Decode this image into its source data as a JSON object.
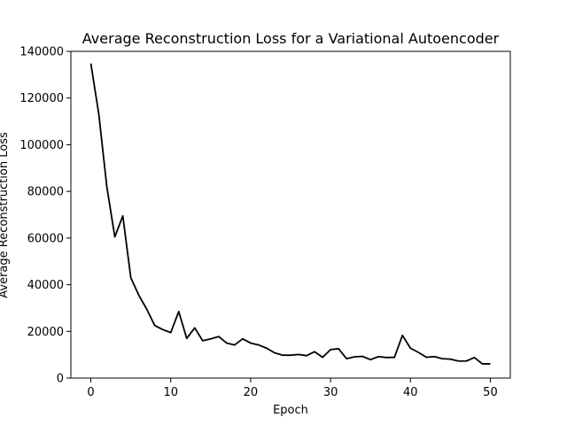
{
  "chart_data": {
    "type": "line",
    "title": "Average Reconstruction Loss for a Variational Autoencoder",
    "xlabel": "Epoch",
    "ylabel": "Average Reconstruction Loss",
    "xlim": [
      -2.5,
      52.5
    ],
    "ylim": [
      0,
      140000
    ],
    "xticks": [
      0,
      10,
      20,
      30,
      40,
      50
    ],
    "yticks": [
      0,
      20000,
      40000,
      60000,
      80000,
      100000,
      120000,
      140000
    ],
    "grid": false,
    "line_color": "#000000",
    "series": [
      {
        "x": [
          0,
          1,
          2,
          3,
          4,
          5,
          6,
          7,
          8,
          9,
          10,
          11,
          12,
          13,
          14,
          15,
          16,
          17,
          18,
          19,
          20,
          21,
          22,
          23,
          24,
          25,
          26,
          27,
          28,
          29,
          30,
          31,
          32,
          33,
          34,
          35,
          36,
          37,
          38,
          39,
          40,
          41,
          42,
          43,
          44,
          45,
          46,
          47,
          48,
          49,
          50
        ],
        "values": [
          134800,
          113000,
          82000,
          60500,
          69500,
          43000,
          35500,
          29500,
          22500,
          20800,
          19500,
          28500,
          17000,
          21500,
          16000,
          16800,
          17800,
          15000,
          14200,
          16800,
          15000,
          14200,
          12800,
          10800,
          9800,
          9800,
          10100,
          9600,
          11300,
          8900,
          12200,
          12600,
          8300,
          9100,
          9300,
          7900,
          9200,
          8800,
          8900,
          18300,
          12800,
          11000,
          8900,
          9200,
          8300,
          8100,
          7300,
          7300,
          8800,
          6100,
          6100
        ]
      }
    ]
  }
}
